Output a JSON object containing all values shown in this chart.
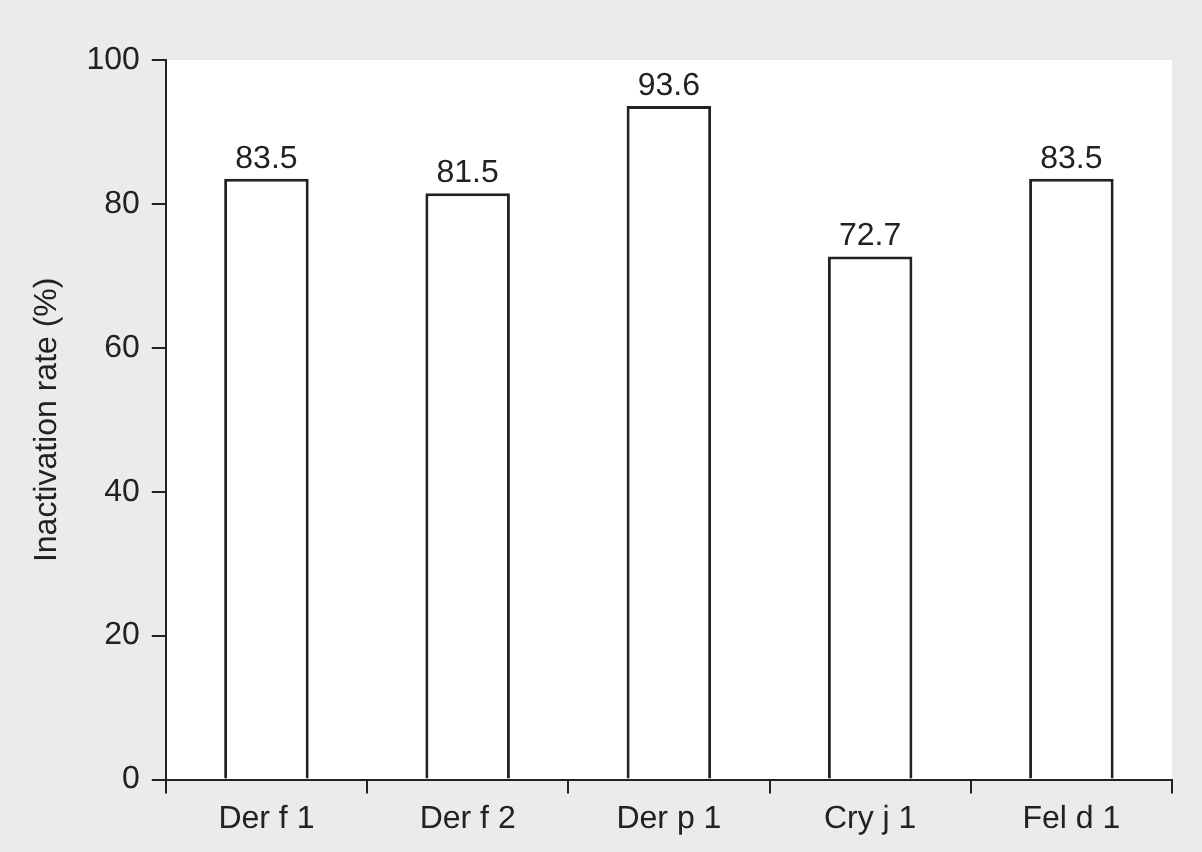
{
  "chart_data": {
    "type": "bar",
    "categories": [
      "Der f 1",
      "Der f 2",
      "Der p 1",
      "Cry j 1",
      "Fel d 1"
    ],
    "values": [
      83.5,
      81.5,
      93.6,
      72.7,
      83.5
    ],
    "color": "#ffffff",
    "ylabel": "Inactivation rate (%)",
    "ylim": [
      0,
      100
    ],
    "yticks": [
      0,
      20,
      40,
      60,
      80,
      100
    ],
    "data_labels": true,
    "grid": false,
    "legend": false
  }
}
